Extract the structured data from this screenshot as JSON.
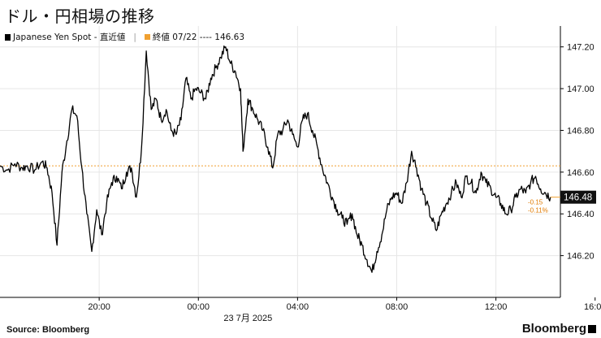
{
  "title": "ドル・円相場の推移",
  "legend": {
    "series_label": "Japanese Yen Spot - 直近値",
    "close_label": "終値 07/22 ---- 146.63"
  },
  "footer": {
    "source": "Source: Bloomberg",
    "brand": "Bloomberg"
  },
  "colors": {
    "line": "#000000",
    "close_line": "#f0a030",
    "grid": "#e6e6e6",
    "axis": "#000000"
  },
  "chart_data": {
    "type": "line",
    "xlabel": "23 7月 2025",
    "ylabel": "",
    "ylim": [
      146.0,
      147.3
    ],
    "x_ticks": [
      "20:00",
      "00:00",
      "04:00",
      "08:00",
      "12:00",
      "16:00"
    ],
    "y_ticks": [
      "146.20",
      "146.40",
      "146.60",
      "146.80",
      "147.00",
      "147.20"
    ],
    "y_tick_values": [
      146.2,
      146.4,
      146.6,
      146.8,
      147.0,
      147.2
    ],
    "x_range_hours": [
      16.0,
      17.5
    ],
    "close_value": 146.63,
    "last_value_label": "146.48",
    "change_labels": [
      "-0.15",
      "-0.11%"
    ],
    "series": [
      {
        "values": [
          [
            16.0,
            146.63
          ],
          [
            16.3,
            146.61
          ],
          [
            16.6,
            146.64
          ],
          [
            16.9,
            146.62
          ],
          [
            17.1,
            146.63
          ],
          [
            17.4,
            146.61
          ],
          [
            17.7,
            146.65
          ],
          [
            17.9,
            146.62
          ],
          [
            18.1,
            146.5
          ],
          [
            18.3,
            146.25
          ],
          [
            18.5,
            146.6
          ],
          [
            18.7,
            146.75
          ],
          [
            18.9,
            146.9
          ],
          [
            19.1,
            146.87
          ],
          [
            19.3,
            146.62
          ],
          [
            19.5,
            146.4
          ],
          [
            19.7,
            146.22
          ],
          [
            19.9,
            146.42
          ],
          [
            20.1,
            146.3
          ],
          [
            20.3,
            146.45
          ],
          [
            20.5,
            146.55
          ],
          [
            20.7,
            146.58
          ],
          [
            20.9,
            146.52
          ],
          [
            21.1,
            146.6
          ],
          [
            21.3,
            146.62
          ],
          [
            21.5,
            146.48
          ],
          [
            21.7,
            146.7
          ],
          [
            21.9,
            147.18
          ],
          [
            22.1,
            146.9
          ],
          [
            22.3,
            146.95
          ],
          [
            22.5,
            146.85
          ],
          [
            22.7,
            146.9
          ],
          [
            22.9,
            146.8
          ],
          [
            23.1,
            146.78
          ],
          [
            23.3,
            146.85
          ],
          [
            23.5,
            147.05
          ],
          [
            23.7,
            146.95
          ],
          [
            23.9,
            147.0
          ],
          [
            24.1,
            146.98
          ],
          [
            24.3,
            146.95
          ],
          [
            24.5,
            147.05
          ],
          [
            24.7,
            147.1
          ],
          [
            24.9,
            147.15
          ],
          [
            25.1,
            147.2
          ],
          [
            25.3,
            147.12
          ],
          [
            25.5,
            147.08
          ],
          [
            25.7,
            147.0
          ],
          [
            25.8,
            146.7
          ],
          [
            26.0,
            146.95
          ],
          [
            26.2,
            146.9
          ],
          [
            26.4,
            146.85
          ],
          [
            26.6,
            146.8
          ],
          [
            26.8,
            146.72
          ],
          [
            27.0,
            146.62
          ],
          [
            27.2,
            146.78
          ],
          [
            27.4,
            146.8
          ],
          [
            27.6,
            146.85
          ],
          [
            27.8,
            146.78
          ],
          [
            28.0,
            146.72
          ],
          [
            28.2,
            146.85
          ],
          [
            28.4,
            146.88
          ],
          [
            28.6,
            146.8
          ],
          [
            28.8,
            146.72
          ],
          [
            29.0,
            146.62
          ],
          [
            29.2,
            146.55
          ],
          [
            29.4,
            146.48
          ],
          [
            29.6,
            146.42
          ],
          [
            29.8,
            146.38
          ],
          [
            30.0,
            146.35
          ],
          [
            30.2,
            146.4
          ],
          [
            30.4,
            146.3
          ],
          [
            30.6,
            146.25
          ],
          [
            30.8,
            146.18
          ],
          [
            31.0,
            146.12
          ],
          [
            31.2,
            146.22
          ],
          [
            31.4,
            146.3
          ],
          [
            31.6,
            146.42
          ],
          [
            31.8,
            146.48
          ],
          [
            32.0,
            146.5
          ],
          [
            32.2,
            146.45
          ],
          [
            32.4,
            146.55
          ],
          [
            32.6,
            146.7
          ],
          [
            32.8,
            146.62
          ],
          [
            33.0,
            146.52
          ],
          [
            33.2,
            146.45
          ],
          [
            33.4,
            146.38
          ],
          [
            33.6,
            146.32
          ],
          [
            33.8,
            146.4
          ],
          [
            34.0,
            146.45
          ],
          [
            34.2,
            146.5
          ],
          [
            34.4,
            146.55
          ],
          [
            34.6,
            146.48
          ],
          [
            34.8,
            146.58
          ],
          [
            35.0,
            146.55
          ],
          [
            35.2,
            146.5
          ],
          [
            35.4,
            146.6
          ],
          [
            35.6,
            146.55
          ],
          [
            35.8,
            146.52
          ],
          [
            36.0,
            146.48
          ],
          [
            36.2,
            146.45
          ],
          [
            36.4,
            146.4
          ],
          [
            36.6,
            146.42
          ],
          [
            36.8,
            146.48
          ],
          [
            37.0,
            146.52
          ],
          [
            37.2,
            146.5
          ],
          [
            37.4,
            146.55
          ],
          [
            37.6,
            146.58
          ],
          [
            37.8,
            146.52
          ],
          [
            38.0,
            146.5
          ],
          [
            38.2,
            146.48
          ]
        ]
      }
    ]
  }
}
